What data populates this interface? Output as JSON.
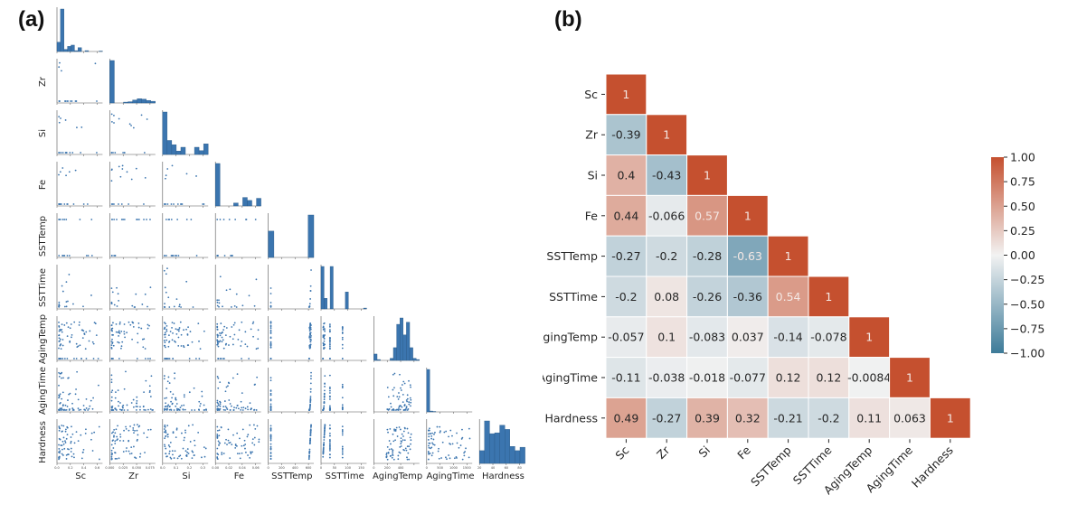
{
  "panels": {
    "a_label": "(a)",
    "b_label": "(b)"
  },
  "chart_data": [
    {
      "type": "scatter",
      "subtype": "pairplot-lower-triangle",
      "title": "",
      "variables": [
        "Sc",
        "Zr",
        "Si",
        "Fe",
        "SSTTemp",
        "SSTTime",
        "AgingTemp",
        "AgingTime",
        "Hardness"
      ],
      "diagonal": "histogram",
      "color": "#3b75af",
      "axis_ranges": {
        "Sc": [
          0,
          0.55
        ],
        "Zr": [
          0,
          0.09
        ],
        "Si": [
          0,
          0.36
        ],
        "Fe": [
          0,
          0.065
        ],
        "SSTTemp": [
          0,
          650
        ],
        "SSTTime": [
          0,
          150
        ],
        "AgingTemp": [
          0,
          560
        ],
        "AgingTime": [
          0,
          1500
        ],
        "Hardness": [
          0,
          100
        ]
      },
      "x_tick_labels": {
        "Sc": [
          "0.0",
          "0.2",
          "0.4",
          "0.6"
        ],
        "Zr": [
          "0.000",
          "0.025",
          "0.050",
          "0.075"
        ],
        "Si": [
          "0.0",
          "0.1",
          "0.2",
          "0.3"
        ],
        "Fe": [
          "0.00",
          "0.02",
          "0.04",
          "0.06"
        ],
        "SSTTemp": [
          "0",
          "200",
          "400",
          "600"
        ],
        "SSTTime": [
          "0",
          "50",
          "100",
          "150"
        ],
        "AgingTemp": [
          "0",
          "200",
          "400"
        ],
        "AgingTime": [
          "0",
          "500",
          "1000",
          "1500"
        ],
        "Hardness": [
          "20",
          "40",
          "60",
          "80"
        ]
      },
      "histograms": {
        "Sc": [
          0.22,
          1.0,
          0.05,
          0.12,
          0.15,
          0.02,
          0.09,
          0.0,
          0.02,
          0.0,
          0.0,
          0.0,
          0.01
        ],
        "Zr": [
          1.0,
          0.0,
          0.0,
          0.02,
          0.03,
          0.07,
          0.1,
          0.09,
          0.06,
          0.04
        ],
        "Si": [
          1.0,
          0.33,
          0.23,
          0.08,
          0.17,
          0.0,
          0.0,
          0.17,
          0.09,
          0.25
        ],
        "Fe": [
          1.0,
          0.0,
          0.0,
          0.0,
          0.07,
          0.0,
          0.2,
          0.13,
          0.0,
          0.18
        ],
        "SSTTemp": [
          0.62,
          0.0,
          0.0,
          0.0,
          0.0,
          0.0,
          0.0,
          1.0
        ],
        "SSTTime": [
          1.0,
          0.25,
          0.0,
          1.0,
          0.0,
          0.0,
          0.0,
          0.0,
          0.4,
          0.0,
          0.0,
          0.0,
          0.0,
          0.0,
          0.02
        ],
        "AgingTemp": [
          0.15,
          0.02,
          0.0,
          0.0,
          0.0,
          0.05,
          0.3,
          0.85,
          1.0,
          0.6,
          0.9,
          0.3,
          0.05,
          0.02
        ],
        "AgingTime": [
          1.0,
          0.02,
          0.01,
          0.0,
          0.0,
          0.0,
          0.0,
          0.0,
          0.0,
          0.0,
          0.0,
          0.0,
          0.0,
          0.0,
          0.0
        ],
        "Hardness": [
          0.3,
          1.0,
          0.7,
          0.72,
          0.9,
          0.8,
          0.4,
          0.3,
          0.38
        ]
      }
    },
    {
      "type": "heatmap",
      "title": "",
      "labels": [
        "Sc",
        "Zr",
        "Si",
        "Fe",
        "SSTTemp",
        "SSTTime",
        "AgingTemp",
        "AgingTime",
        "Hardness"
      ],
      "mask": "upper-triangle",
      "matrix": [
        [
          1
        ],
        [
          -0.39,
          1
        ],
        [
          0.4,
          -0.43,
          1
        ],
        [
          0.44,
          -0.066,
          0.57,
          1
        ],
        [
          -0.27,
          -0.2,
          -0.28,
          -0.63,
          1
        ],
        [
          -0.2,
          0.08,
          -0.26,
          -0.36,
          0.54,
          1
        ],
        [
          -0.057,
          0.1,
          -0.083,
          0.037,
          -0.14,
          -0.078,
          1
        ],
        [
          -0.11,
          -0.038,
          -0.018,
          -0.077,
          0.12,
          0.12,
          -0.0084,
          1
        ],
        [
          0.49,
          -0.27,
          0.39,
          0.32,
          -0.21,
          -0.2,
          0.11,
          0.063,
          1
        ]
      ],
      "colorbar": {
        "range": [
          -1.0,
          1.0
        ],
        "ticks": [
          "1.00",
          "0.75",
          "0.50",
          "0.25",
          "0.00",
          "−0.25",
          "−0.50",
          "−0.75",
          "−1.00"
        ],
        "tick_values": [
          1.0,
          0.75,
          0.5,
          0.25,
          0.0,
          -0.25,
          -0.5,
          -0.75,
          -1.0
        ],
        "colormap": "diverging blue-white-red",
        "low_color": "#3d7b99",
        "mid_color": "#f2f2f2",
        "high_color": "#c5502f"
      }
    }
  ]
}
